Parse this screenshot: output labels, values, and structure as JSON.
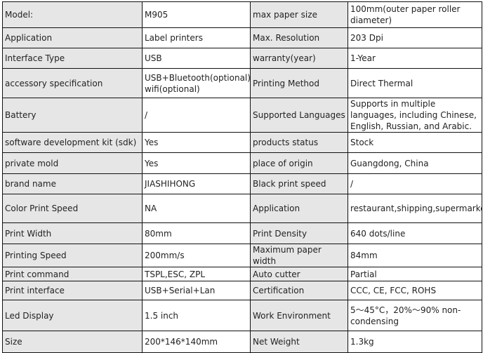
{
  "rows": [
    {
      "k1": "Model:",
      "v1": "M905",
      "k2": "max paper size",
      "v2": "100mm(outer paper roller diameter)"
    },
    {
      "k1": "Application",
      "v1": "Label printers",
      "k2": "Max. Resolution",
      "v2": "203 Dpi"
    },
    {
      "k1": "Interface Type",
      "v1": "USB",
      "k2": "warranty(year)",
      "v2": "1-Year"
    },
    {
      "k1": "accessory specification",
      "v1": "USB+Bluetooth(optional)+ wifi(optional)",
      "k2": "Printing Method",
      "v2": "Direct Thermal"
    },
    {
      "k1": "Battery",
      "v1": "/",
      "k2": "Supported Languages",
      "v2": "Supports in multiple languages, including Chinese, English, Russian, and Arabic."
    },
    {
      "k1": "software development kit (sdk)",
      "v1": "Yes",
      "k2": "products status",
      "v2": "Stock"
    },
    {
      "k1": "private mold",
      "v1": "Yes",
      "k2": "place of origin",
      "v2": "Guangdong, China"
    },
    {
      "k1": "brand name",
      "v1": "JIASHIHONG",
      "k2": "Black print speed",
      "v2": "/"
    },
    {
      "k1": "Color Print Speed",
      "v1": "NA",
      "k2": "Application",
      "v2": "restaurant,shipping,supermarket,shop"
    },
    {
      "k1": "Print Width",
      "v1": "80mm",
      "k2": "Print Density",
      "v2": "640 dots/line"
    },
    {
      "k1": "Printing Speed",
      "v1": "200mm/s",
      "k2": "Maximum paper width",
      "v2": "84mm"
    },
    {
      "k1": "Print command",
      "v1": "TSPL,ESC, ZPL",
      "k2": "Auto cutter",
      "v2": "Partial"
    },
    {
      "k1": "Print interface",
      "v1": "USB+Serial+Lan",
      "k2": "Certification",
      "v2": "CCC, CE, FCC, ROHS"
    },
    {
      "k1": "Led Display",
      "v1": "1.5 inch",
      "k2": "Work Environment",
      "v2": "5～45°C，20%～90% non-condensing"
    },
    {
      "k1": "Size",
      "v1": "200*146*140mm",
      "k2": "Net Weight",
      "v2": "1.3kg"
    }
  ]
}
